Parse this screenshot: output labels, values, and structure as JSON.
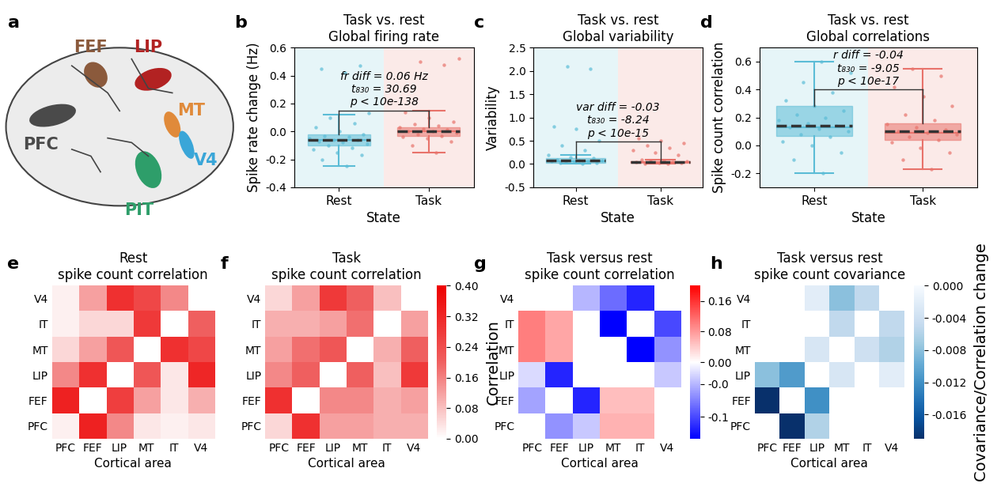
{
  "diagram": {
    "label": "a",
    "areas": [
      {
        "name": "PFC",
        "color": "#4a4a4a"
      },
      {
        "name": "FEF",
        "color": "#8b5a3c"
      },
      {
        "name": "LIP",
        "color": "#b22222"
      },
      {
        "name": "MT",
        "color": "#e08a3a"
      },
      {
        "name": "V4",
        "color": "#3aa6d8"
      },
      {
        "name": "PIT",
        "color": "#2e9e6a"
      }
    ]
  },
  "chart_data": [
    {
      "type": "box",
      "label": "b",
      "title": "Task vs. rest\nGlobal firing rate",
      "xlabel": "State",
      "ylabel": "Spike rate change (Hz)",
      "categories": [
        "Rest",
        "Task"
      ],
      "colors": [
        "#5bbcd6",
        "#e8736b"
      ],
      "boxes": [
        {
          "q1": -0.1,
          "median": -0.06,
          "q3": -0.02,
          "whislo": -0.25,
          "whishi": 0.12,
          "mean": -0.06
        },
        {
          "q1": -0.03,
          "median": 0.0,
          "q3": 0.03,
          "whislo": -0.15,
          "whishi": 0.15,
          "mean": 0.0
        }
      ],
      "points": [
        [
          -0.25,
          -0.2,
          -0.17,
          -0.15,
          -0.13,
          -0.12,
          -0.1,
          -0.09,
          -0.08,
          -0.07,
          -0.06,
          -0.06,
          -0.05,
          -0.04,
          -0.03,
          -0.02,
          0.0,
          0.03,
          0.06,
          0.1,
          0.13,
          0.42,
          0.45,
          0.47
        ],
        [
          -0.15,
          -0.1,
          -0.07,
          -0.05,
          -0.04,
          -0.03,
          -0.02,
          -0.01,
          0.0,
          0.0,
          0.01,
          0.02,
          0.03,
          0.04,
          0.05,
          0.07,
          0.1,
          0.14,
          0.48,
          0.5,
          0.52
        ]
      ],
      "annotation": [
        "fr diff = 0.06 Hz",
        "t₈₃₀ = 30.69",
        "p < 10e-138"
      ],
      "ylim": [
        -0.4,
        0.6
      ],
      "yticks": [
        -0.4,
        -0.2,
        {
          "value": 0,
          "label": "0.0"
        },
        0.2,
        0.4,
        0.6
      ]
    },
    {
      "type": "box",
      "label": "c",
      "title": "Task vs. rest\nGlobal variability",
      "xlabel": "State",
      "ylabel": "Variability",
      "categories": [
        "Rest",
        "Task"
      ],
      "colors": [
        "#5bbcd6",
        "#e8736b"
      ],
      "boxes": [
        {
          "q1": 0.03,
          "median": 0.06,
          "q3": 0.12,
          "whislo": 0.0,
          "whishi": 0.2,
          "mean": 0.07
        },
        {
          "q1": 0.02,
          "median": 0.04,
          "q3": 0.06,
          "whislo": 0.0,
          "whishi": 0.1,
          "mean": 0.04
        }
      ],
      "points": [
        [
          0.0,
          0.02,
          0.03,
          0.04,
          0.05,
          0.06,
          0.06,
          0.07,
          0.08,
          0.1,
          0.12,
          0.15,
          0.2,
          0.3,
          0.4,
          0.5,
          0.75,
          0.8,
          2.05,
          2.1
        ],
        [
          0.0,
          0.01,
          0.02,
          0.03,
          0.04,
          0.04,
          0.05,
          0.06,
          0.08,
          0.1,
          0.2,
          0.25,
          0.3,
          0.35,
          0.4,
          0.45,
          0.5,
          0.55
        ]
      ],
      "annotation": [
        "var diff = -0.03",
        "t₈₃₀ = -8.24",
        "p < 10e-15"
      ],
      "ylim": [
        -0.5,
        2.5
      ],
      "yticks": [
        -0.5,
        {
          "value": 0,
          "label": "0.0"
        },
        0.5,
        {
          "value": 1,
          "label": "1.0"
        },
        1.5,
        {
          "value": 2,
          "label": "2.0"
        },
        2.5
      ]
    },
    {
      "type": "box",
      "label": "d",
      "title": "Task vs. rest\nGlobal correlations",
      "xlabel": "State",
      "ylabel": "Spike count correlation",
      "categories": [
        "Rest",
        "Task"
      ],
      "colors": [
        "#5bbcd6",
        "#e8736b"
      ],
      "boxes": [
        {
          "q1": 0.07,
          "median": 0.13,
          "q3": 0.28,
          "whislo": -0.2,
          "whishi": 0.6,
          "mean": 0.14
        },
        {
          "q1": 0.04,
          "median": 0.09,
          "q3": 0.16,
          "whislo": -0.17,
          "whishi": 0.55,
          "mean": 0.1
        }
      ],
      "points": [
        [
          -0.2,
          -0.1,
          -0.05,
          0.0,
          0.03,
          0.06,
          0.08,
          0.1,
          0.12,
          0.13,
          0.14,
          0.16,
          0.18,
          0.2,
          0.22,
          0.25,
          0.28,
          0.32,
          0.38,
          0.45,
          0.52,
          0.6
        ],
        [
          -0.17,
          -0.1,
          -0.05,
          -0.02,
          0.02,
          0.04,
          0.06,
          0.08,
          0.09,
          0.1,
          0.11,
          0.13,
          0.15,
          0.18,
          0.22,
          0.28,
          0.35,
          0.42,
          0.5,
          0.55
        ]
      ],
      "annotation": [
        "r diff = -0.04",
        "t₈₃₀ = -9.05",
        "p < 10e-17"
      ],
      "ylim": [
        -0.3,
        0.7
      ],
      "yticks": [
        -0.2,
        {
          "value": 0,
          "label": "0.0"
        },
        0.2,
        0.4,
        0.6
      ]
    },
    {
      "type": "heatmap",
      "label": "e",
      "title": "Rest\nspike count correlation",
      "xlabel": "Cortical area",
      "x_categories": [
        "PFC",
        "FEF",
        "LIP",
        "MT",
        "IT",
        "V4"
      ],
      "y_categories": [
        "V4",
        "IT",
        "MT",
        "LIP",
        "FEF",
        "PFC"
      ],
      "cells": [
        [
          0.02,
          0.12,
          0.3,
          0.25,
          0.15,
          null
        ],
        [
          0.02,
          0.05,
          0.05,
          0.28,
          null,
          0.2
        ],
        [
          0.05,
          0.12,
          0.22,
          null,
          0.3,
          0.25
        ],
        [
          0.15,
          0.3,
          null,
          0.22,
          0.03,
          0.32
        ],
        [
          0.33,
          null,
          0.27,
          0.12,
          0.03,
          0.1
        ],
        [
          0.02,
          0.33,
          0.15,
          0.03,
          0.02,
          0.03
        ]
      ],
      "clim": [
        0,
        0.4
      ]
    },
    {
      "type": "heatmap",
      "label": "f",
      "title": "Task\nspike count correlation",
      "xlabel": "Cortical area",
      "x_categories": [
        "PFC",
        "FEF",
        "LIP",
        "MT",
        "IT",
        "V4"
      ],
      "y_categories": [
        "V4",
        "IT",
        "MT",
        "LIP",
        "FEF",
        "PFC"
      ],
      "cells": [
        [
          0.05,
          0.12,
          0.28,
          0.2,
          0.08,
          null
        ],
        [
          0.1,
          0.1,
          0.12,
          0.18,
          null,
          0.12
        ],
        [
          0.12,
          0.18,
          0.22,
          null,
          0.1,
          0.2
        ],
        [
          0.15,
          0.2,
          null,
          0.2,
          0.08,
          0.28
        ],
        [
          0.3,
          null,
          0.15,
          0.15,
          0.1,
          0.12
        ],
        [
          0.05,
          0.3,
          0.12,
          0.12,
          0.1,
          0.1
        ]
      ],
      "clim": [
        0,
        0.4
      ],
      "colorbar": {
        "label": "Correlation",
        "ticks": [
          {
            "value": 0,
            "label": "0.00"
          },
          {
            "value": 0.08,
            "label": "0.08"
          },
          {
            "value": 0.16,
            "label": "0.16"
          },
          {
            "value": 0.24,
            "label": "0.24"
          },
          {
            "value": 0.32,
            "label": "0.32"
          },
          {
            "value": 0.4,
            "label": "0.40"
          }
        ]
      }
    },
    {
      "type": "heatmap",
      "label": "g",
      "title": "Task versus rest\nspike count correlation",
      "xlabel": "Cortical area",
      "x_categories": [
        "PFC",
        "FEF",
        "LIP",
        "MT",
        "IT",
        "V4"
      ],
      "y_categories": [
        "V4",
        "IT",
        "MT",
        "LIP",
        "FEF",
        "PFC"
      ],
      "cells": [
        [
          null,
          null,
          -0.04,
          -0.08,
          -0.12,
          null
        ],
        [
          0.1,
          0.07,
          null,
          -0.14,
          null,
          -0.1
        ],
        [
          0.1,
          0.07,
          null,
          null,
          -0.14,
          -0.06
        ],
        [
          -0.02,
          -0.12,
          null,
          null,
          null,
          -0.03
        ],
        [
          -0.05,
          null,
          -0.12,
          0.05,
          0.05,
          null
        ],
        [
          null,
          -0.06,
          -0.03,
          0.06,
          0.06,
          null
        ]
      ],
      "clim": [
        -0.14,
        0.2
      ],
      "center": 0,
      "colorbar": {
        "ticks": [
          {
            "value": 0.16,
            "label": "0.16"
          },
          {
            "value": 0.08,
            "label": "0.08"
          },
          {
            "value": 0,
            "label": "0.00"
          },
          {
            "value": -0.04,
            "label": "-0.0"
          },
          {
            "value": -0.1,
            "label": "-0.1"
          }
        ]
      }
    },
    {
      "type": "heatmap",
      "label": "h",
      "title": "Task versus rest\nspike count covariance",
      "xlabel": "Cortical area",
      "x_categories": [
        "PFC",
        "FEF",
        "LIP",
        "MT",
        "IT",
        "V4"
      ],
      "y_categories": [
        "V4",
        "IT",
        "MT",
        "LIP",
        "FEF",
        "PFC"
      ],
      "cells": [
        [
          null,
          null,
          -0.002,
          -0.008,
          -0.005,
          null
        ],
        [
          null,
          null,
          null,
          -0.005,
          null,
          -0.005
        ],
        [
          null,
          null,
          -0.003,
          null,
          -0.004,
          -0.006
        ],
        [
          -0.008,
          -0.011,
          null,
          -0.003,
          null,
          -0.002
        ],
        [
          -0.019,
          null,
          -0.012,
          null,
          null,
          null
        ],
        [
          null,
          -0.019,
          -0.006,
          null,
          null,
          null
        ]
      ],
      "clim": [
        -0.019,
        0
      ],
      "colorbar": {
        "label": "Covariance/Correlation change",
        "ticks": [
          {
            "value": 0,
            "label": "0.000"
          },
          {
            "value": -0.004,
            "label": "-0.004"
          },
          {
            "value": -0.008,
            "label": "-0.008"
          },
          {
            "value": -0.012,
            "label": "-0.012"
          },
          {
            "value": -0.016,
            "label": "-0.016"
          }
        ]
      }
    }
  ]
}
